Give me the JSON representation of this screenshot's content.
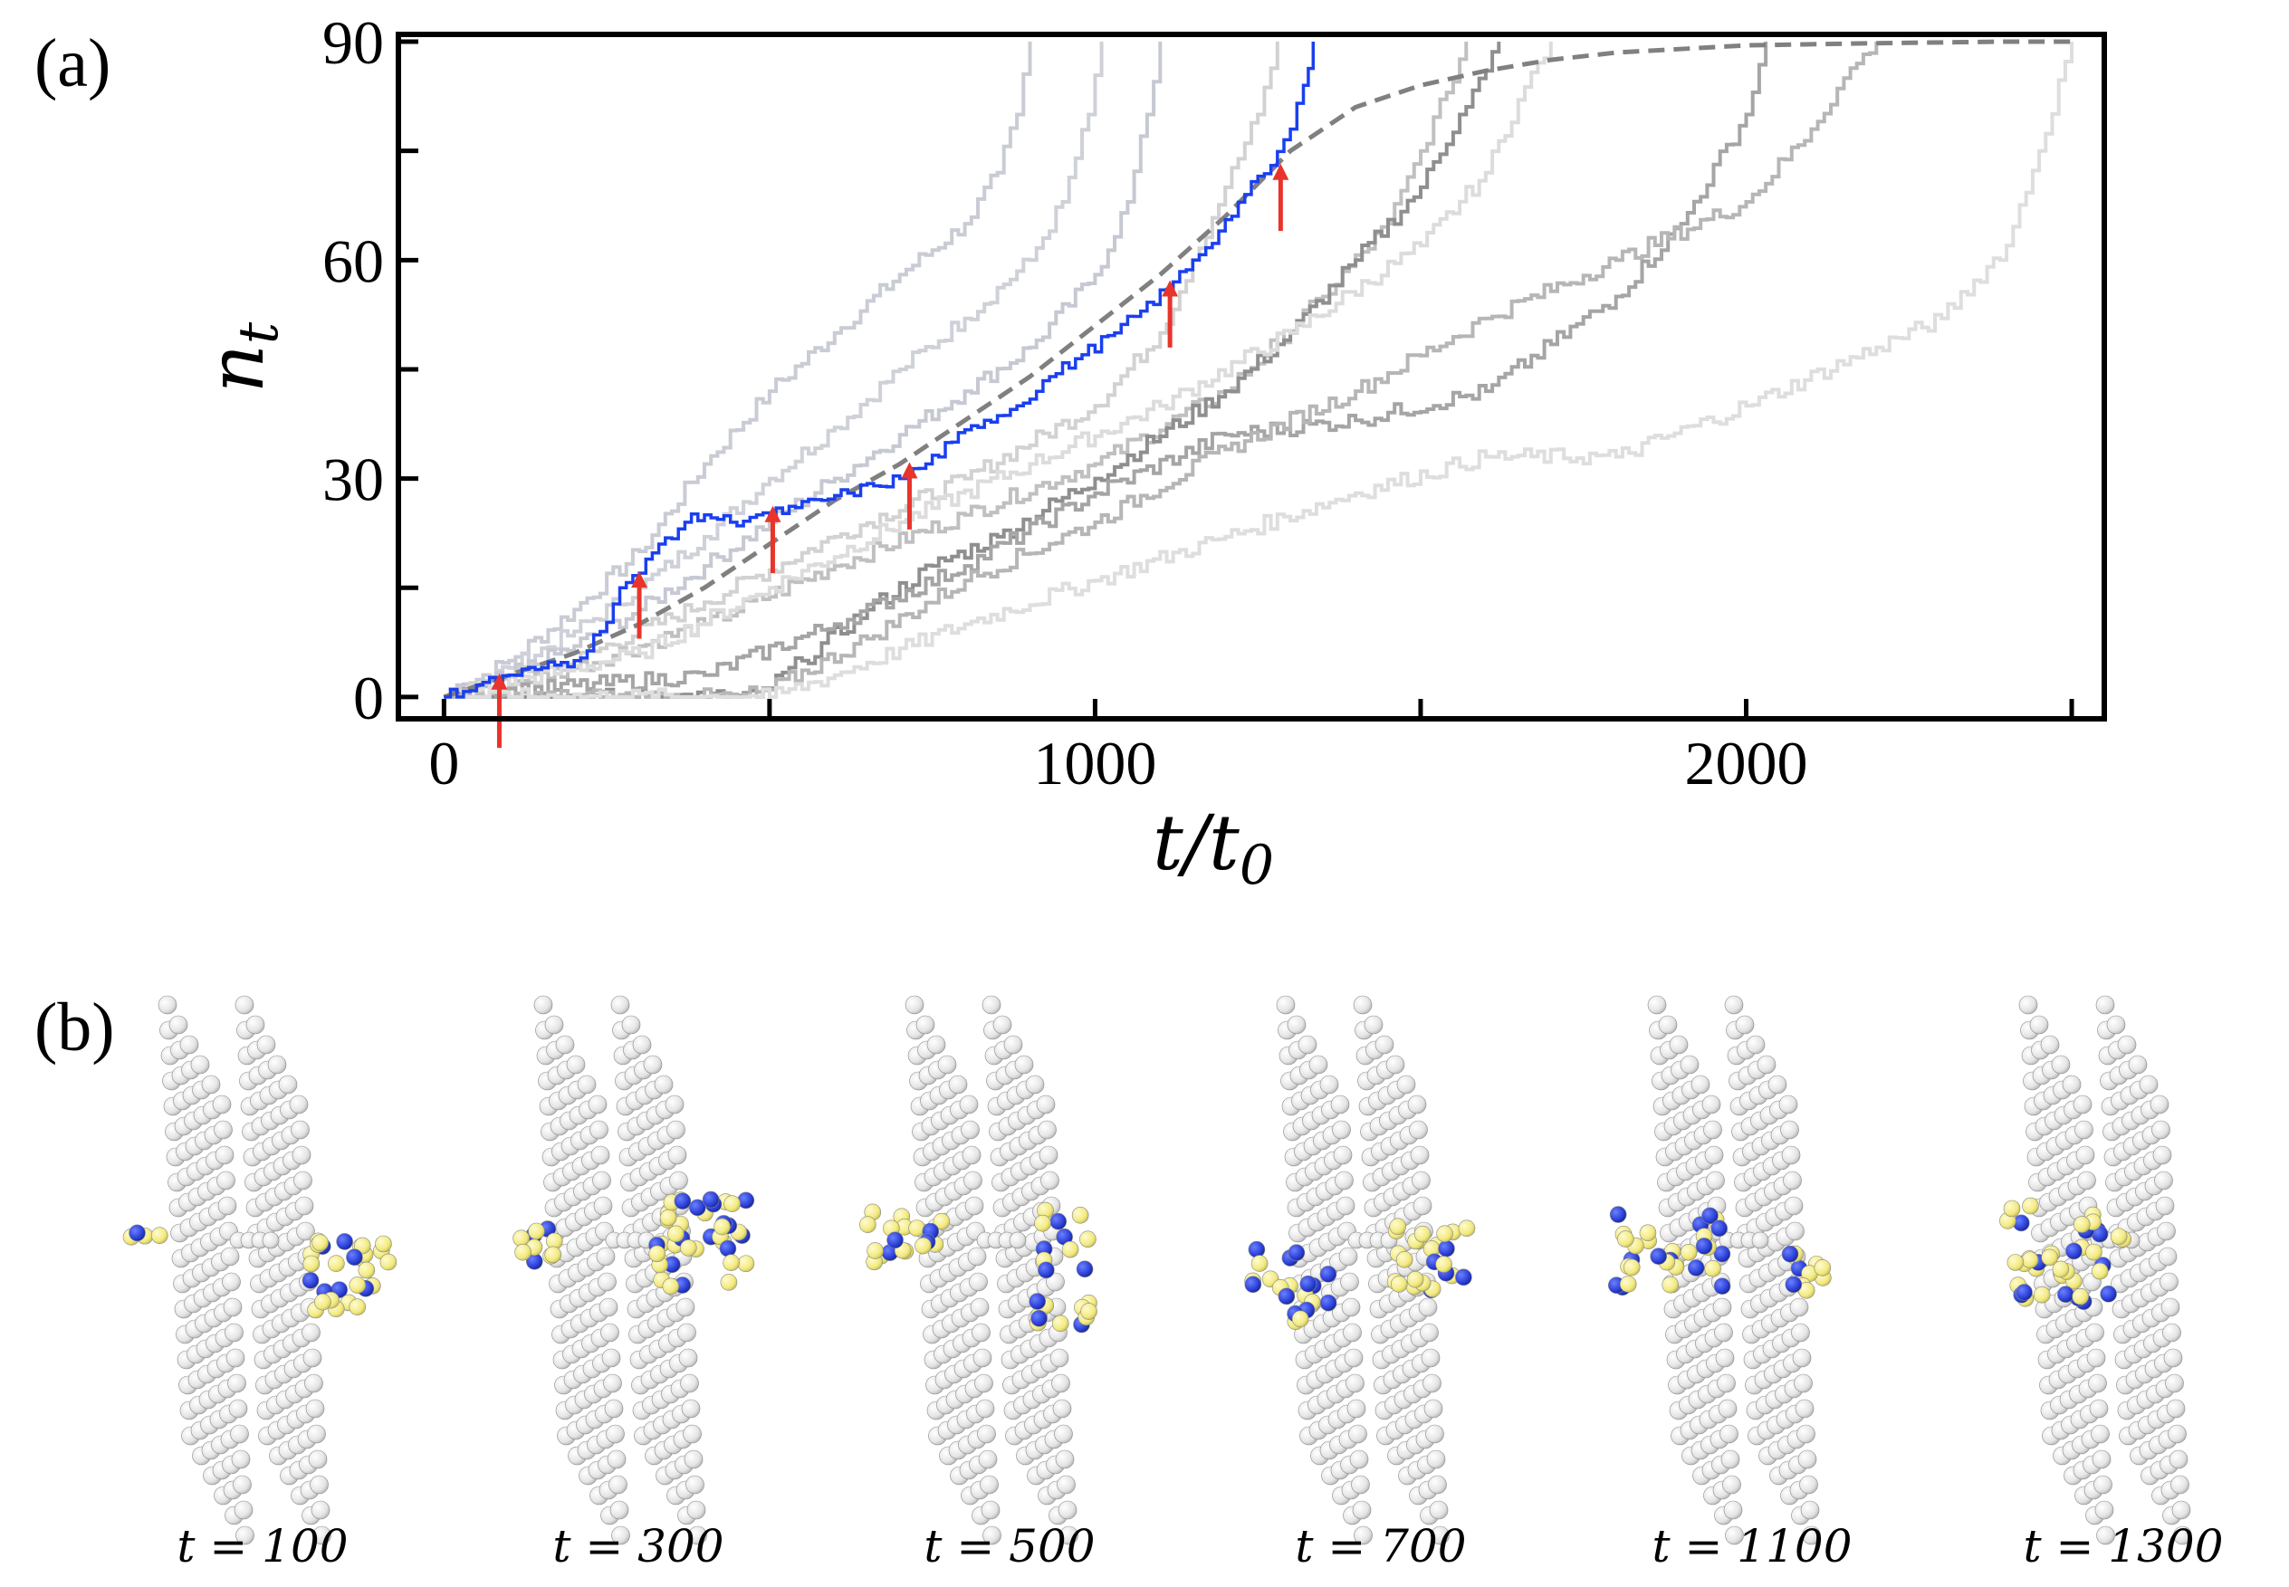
{
  "panel_labels": {
    "a": "(a)",
    "b": "(b)"
  },
  "chart_data": {
    "type": "line",
    "title": "",
    "xlabel": "t/t_0",
    "ylabel": "n_t",
    "xlabel_parts": {
      "main": "t/t",
      "sub": "0"
    },
    "ylabel_parts": {
      "main": "n",
      "sub": "t"
    },
    "xlim": [
      -70,
      2550
    ],
    "ylim": [
      -3,
      91
    ],
    "x_ticks": [
      0,
      1000,
      2000
    ],
    "x_ticklabels": [
      "0",
      "1000",
      "2000"
    ],
    "x_minor_ticks": [
      500,
      1500,
      2500
    ],
    "y_ticks": [
      0,
      30,
      60,
      90
    ],
    "y_ticklabels": [
      "0",
      "30",
      "60",
      "90"
    ],
    "y_minor_ticks": [
      15,
      45,
      75
    ],
    "grid": false,
    "legend": "none",
    "highlighted_series": {
      "name": "highlighted trajectory",
      "color": "#1a3ff0",
      "x": [
        0,
        60,
        100,
        150,
        200,
        240,
        270,
        300,
        330,
        370,
        400,
        440,
        480,
        500,
        540,
        580,
        620,
        660,
        700,
        740,
        780,
        830,
        880,
        930,
        980,
        1030,
        1070,
        1110,
        1150,
        1190,
        1230,
        1270,
        1300,
        1320,
        1335
      ],
      "values": [
        0,
        2,
        3,
        4,
        5,
        9,
        15,
        17,
        21,
        24,
        25,
        24,
        25,
        25,
        26,
        27,
        28,
        29,
        30,
        32,
        35,
        38,
        40,
        44,
        47,
        50,
        53,
        56,
        60,
        64,
        69,
        73,
        78,
        84,
        90
      ]
    },
    "mean_series": {
      "name": "mean",
      "color": "#808080",
      "style": "dashed",
      "x": [
        0,
        100,
        200,
        300,
        400,
        500,
        600,
        700,
        800,
        900,
        1000,
        1100,
        1200,
        1300,
        1400,
        1500,
        1600,
        1700,
        1800,
        2000,
        2200,
        2400,
        2500
      ],
      "values": [
        0,
        3,
        6,
        10,
        15,
        21,
        27,
        32,
        38,
        44,
        51,
        58,
        66,
        75,
        81,
        84,
        86,
        87.5,
        88.5,
        89.5,
        89.8,
        90,
        90
      ]
    },
    "background_series": [
      {
        "name": "trajectory 1",
        "color": "#c9ccd4",
        "x": [
          0,
          100,
          200,
          300,
          400,
          500,
          600,
          700,
          800,
          850,
          880,
          900
        ],
        "values": [
          0,
          5,
          12,
          20,
          32,
          42,
          50,
          58,
          65,
          72,
          80,
          90
        ]
      },
      {
        "name": "trajectory 2",
        "color": "#cfd1d8",
        "x": [
          0,
          100,
          200,
          300,
          400,
          500,
          600,
          700,
          800,
          900,
          950,
          990,
          1010
        ],
        "values": [
          0,
          4,
          9,
          15,
          22,
          30,
          37,
          45,
          52,
          60,
          68,
          80,
          90
        ]
      },
      {
        "name": "trajectory 3",
        "color": "#c6c9d2",
        "x": [
          0,
          100,
          200,
          300,
          400,
          500,
          600,
          700,
          800,
          900,
          1000,
          1050,
          1080,
          1100
        ],
        "values": [
          0,
          3,
          7,
          12,
          18,
          24,
          30,
          36,
          42,
          48,
          58,
          68,
          80,
          90
        ]
      },
      {
        "name": "trajectory 4",
        "color": "#d2d2d2",
        "x": [
          0,
          200,
          400,
          600,
          800,
          1000,
          1100,
          1150,
          1200,
          1250,
          1280
        ],
        "values": [
          0,
          5,
          13,
          22,
          30,
          40,
          50,
          60,
          70,
          80,
          90
        ]
      },
      {
        "name": "trajectory 5",
        "color": "#c0c0c0",
        "x": [
          0,
          200,
          400,
          600,
          800,
          1000,
          1200,
          1350,
          1450,
          1500,
          1540,
          1570
        ],
        "values": [
          0,
          4,
          10,
          18,
          25,
          32,
          42,
          55,
          65,
          75,
          83,
          90
        ]
      },
      {
        "name": "trajectory 6",
        "color": "#8f8f8f",
        "x": [
          0,
          400,
          480,
          550,
          650,
          750,
          850,
          1000,
          1200,
          1300,
          1400,
          1500,
          1560,
          1600,
          1620
        ],
        "values": [
          0,
          0,
          0,
          5,
          12,
          18,
          22,
          30,
          42,
          50,
          60,
          70,
          80,
          86,
          90
        ]
      },
      {
        "name": "trajectory 7",
        "color": "#dcdcdc",
        "x": [
          0,
          300,
          500,
          700,
          900,
          1100,
          1300,
          1500,
          1600,
          1650,
          1700
        ],
        "values": [
          0,
          6,
          15,
          24,
          32,
          40,
          50,
          62,
          72,
          82,
          90
        ]
      },
      {
        "name": "trajectory 8",
        "color": "#a5a5a5",
        "x": [
          0,
          400,
          600,
          800,
          1000,
          1200,
          1400,
          1600,
          1800,
          1900,
          2000,
          2030
        ],
        "values": [
          0,
          3,
          10,
          18,
          28,
          36,
          38,
          42,
          55,
          65,
          80,
          90
        ]
      },
      {
        "name": "trajectory 9",
        "color": "#b6b6b6",
        "x": [
          0,
          450,
          500,
          650,
          800,
          1000,
          1200,
          1400,
          1600,
          1800,
          2000,
          2100,
          2150,
          2200
        ],
        "values": [
          0,
          0,
          1,
          8,
          16,
          24,
          34,
          42,
          52,
          60,
          68,
          78,
          85,
          90
        ]
      },
      {
        "name": "trajectory 10",
        "color": "#dedede",
        "x": [
          0,
          500,
          600,
          800,
          1000,
          1200,
          1400,
          1600,
          1800,
          2000,
          2200,
          2300,
          2400,
          2450,
          2500
        ],
        "values": [
          0,
          0,
          3,
          10,
          16,
          22,
          28,
          33,
          33,
          40,
          48,
          52,
          62,
          75,
          90
        ]
      }
    ],
    "annotations": {
      "type": "arrows",
      "color": "#e8342b",
      "arrows": [
        {
          "x": 85,
          "y_from": -7,
          "y_to": 3
        },
        {
          "x": 300,
          "y_from": 8,
          "y_to": 17
        },
        {
          "x": 505,
          "y_from": 17,
          "y_to": 26
        },
        {
          "x": 715,
          "y_from": 23,
          "y_to": 32
        },
        {
          "x": 1115,
          "y_from": 48,
          "y_to": 57
        },
        {
          "x": 1285,
          "y_from": 64,
          "y_to": 73
        }
      ]
    }
  },
  "snapshots": [
    {
      "caption": "t = 100",
      "colors": {
        "wall": "#d8d8d8",
        "yellow": "#f2ea80",
        "blue": "#2a3fd6"
      }
    },
    {
      "caption": "t = 300"
    },
    {
      "caption": "t = 500"
    },
    {
      "caption": "t = 700"
    },
    {
      "caption": "t = 1100"
    },
    {
      "caption": "t = 1300"
    }
  ]
}
